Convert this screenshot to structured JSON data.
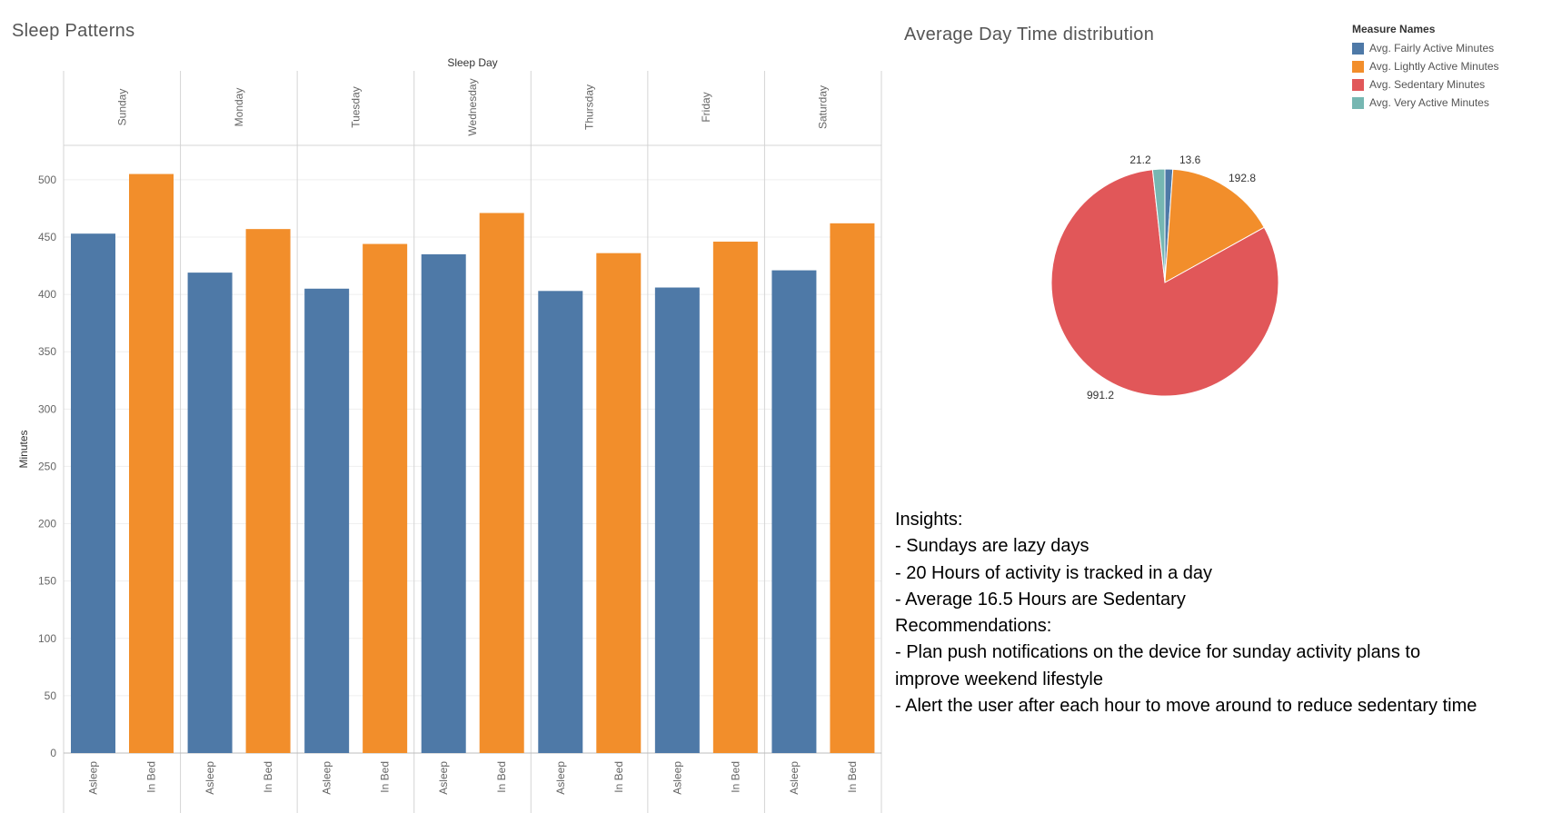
{
  "titles": {
    "sleep": "Sleep Patterns",
    "pie": "Average Day Time distribution"
  },
  "legend": {
    "title": "Measure Names",
    "items": [
      {
        "label": "Avg. Fairly Active Minutes",
        "color": "#4e79a7"
      },
      {
        "label": "Avg. Lightly Active Minutes",
        "color": "#f28e2b"
      },
      {
        "label": "Avg. Sedentary Minutes",
        "color": "#e15759"
      },
      {
        "label": "Avg. Very Active Minutes",
        "color": "#76b7b2"
      }
    ]
  },
  "insights": [
    "Insights:",
    "- Sundays are lazy days",
    "- 20 Hours of activity is tracked in a day",
    "- Average 16.5 Hours are Sedentary",
    "Recommendations:",
    "- Plan push notifications on the device for sunday activity plans to",
    "improve weekend lifestyle",
    "- Alert the user after each hour to move around to reduce sedentary time"
  ],
  "chart_data": [
    {
      "type": "bar",
      "title": "Sleep Patterns",
      "column_header": "Sleep Day",
      "categories": [
        "Sunday",
        "Monday",
        "Tuesday",
        "Wednesday",
        "Thursday",
        "Friday",
        "Saturday"
      ],
      "subcategories": [
        "Asleep",
        "In Bed"
      ],
      "series": [
        {
          "name": "Asleep",
          "color": "#4e79a7",
          "values": [
            453,
            419,
            405,
            435,
            403,
            406,
            421
          ]
        },
        {
          "name": "In Bed",
          "color": "#f28e2b",
          "values": [
            505,
            457,
            444,
            471,
            436,
            446,
            462
          ]
        }
      ],
      "ylabel": "Minutes",
      "ylim": [
        0,
        530
      ],
      "yticks": [
        0,
        50,
        100,
        150,
        200,
        250,
        300,
        350,
        400,
        450,
        500
      ],
      "grid": true
    },
    {
      "type": "pie",
      "title": "Average Day Time distribution",
      "legend_position": "top-right",
      "slices": [
        {
          "label": "Avg. Fairly Active Minutes",
          "value": 13.6,
          "display": "13.6",
          "color": "#4e79a7"
        },
        {
          "label": "Avg. Lightly Active Minutes",
          "value": 192.8,
          "display": "192.8",
          "color": "#f28e2b"
        },
        {
          "label": "Avg. Sedentary Minutes",
          "value": 991.2,
          "display": "991.2",
          "color": "#e15759"
        },
        {
          "label": "Avg. Very Active Minutes",
          "value": 21.2,
          "display": "21.2",
          "color": "#76b7b2"
        }
      ]
    }
  ]
}
